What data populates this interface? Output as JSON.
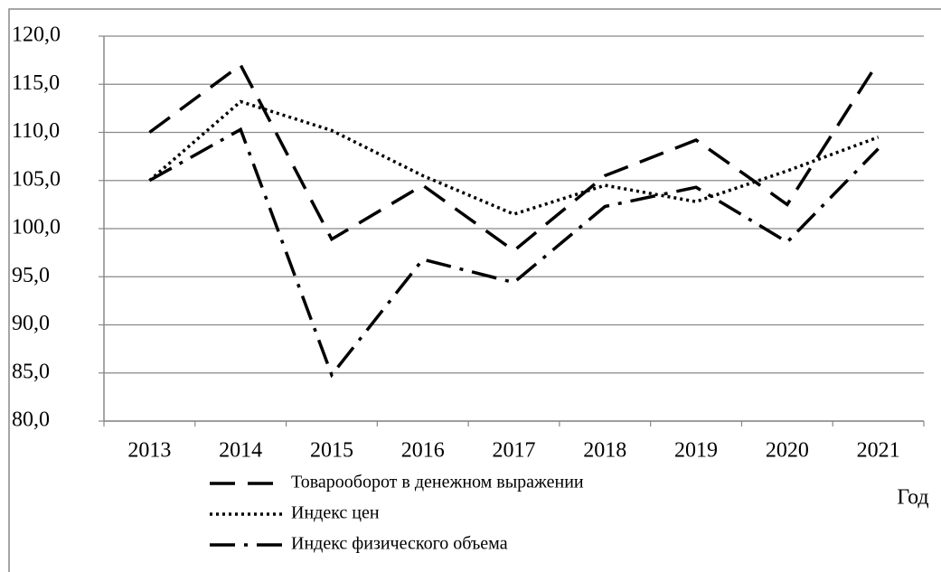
{
  "chart_data": {
    "type": "line",
    "xlabel": "Год",
    "categories": [
      "2013",
      "2014",
      "2015",
      "2016",
      "2017",
      "2018",
      "2019",
      "2020",
      "2021"
    ],
    "series": [
      {
        "name": "Товарооборот в денежном выражении",
        "color": "#000000",
        "dash": "28,14",
        "values": [
          110.0,
          117.0,
          98.9,
          104.5,
          97.7,
          105.5,
          109.2,
          102.5,
          117.3
        ]
      },
      {
        "name": "Индекс цен",
        "color": "#000000",
        "dash": "3,4",
        "values": [
          105.0,
          113.2,
          110.2,
          105.5,
          101.5,
          104.5,
          102.8,
          106.0,
          109.5
        ]
      },
      {
        "name": "Индекс физического объема",
        "color": "#000000",
        "dash": "28,10,4,10",
        "values": [
          105.0,
          110.3,
          84.8,
          96.8,
          94.4,
          102.3,
          104.3,
          98.6,
          108.3
        ]
      }
    ],
    "ylim": [
      80,
      120
    ],
    "yticks": [
      {
        "value": 80,
        "label": "80,0"
      },
      {
        "value": 85,
        "label": "85,0"
      },
      {
        "value": 90,
        "label": "90,0"
      },
      {
        "value": 95,
        "label": "95,0"
      },
      {
        "value": 100,
        "label": "100,0"
      },
      {
        "value": 105,
        "label": "105,0"
      },
      {
        "value": 110,
        "label": "110,0"
      },
      {
        "value": 115,
        "label": "115,0"
      },
      {
        "value": 120,
        "label": "120,0"
      }
    ],
    "grid": true
  }
}
